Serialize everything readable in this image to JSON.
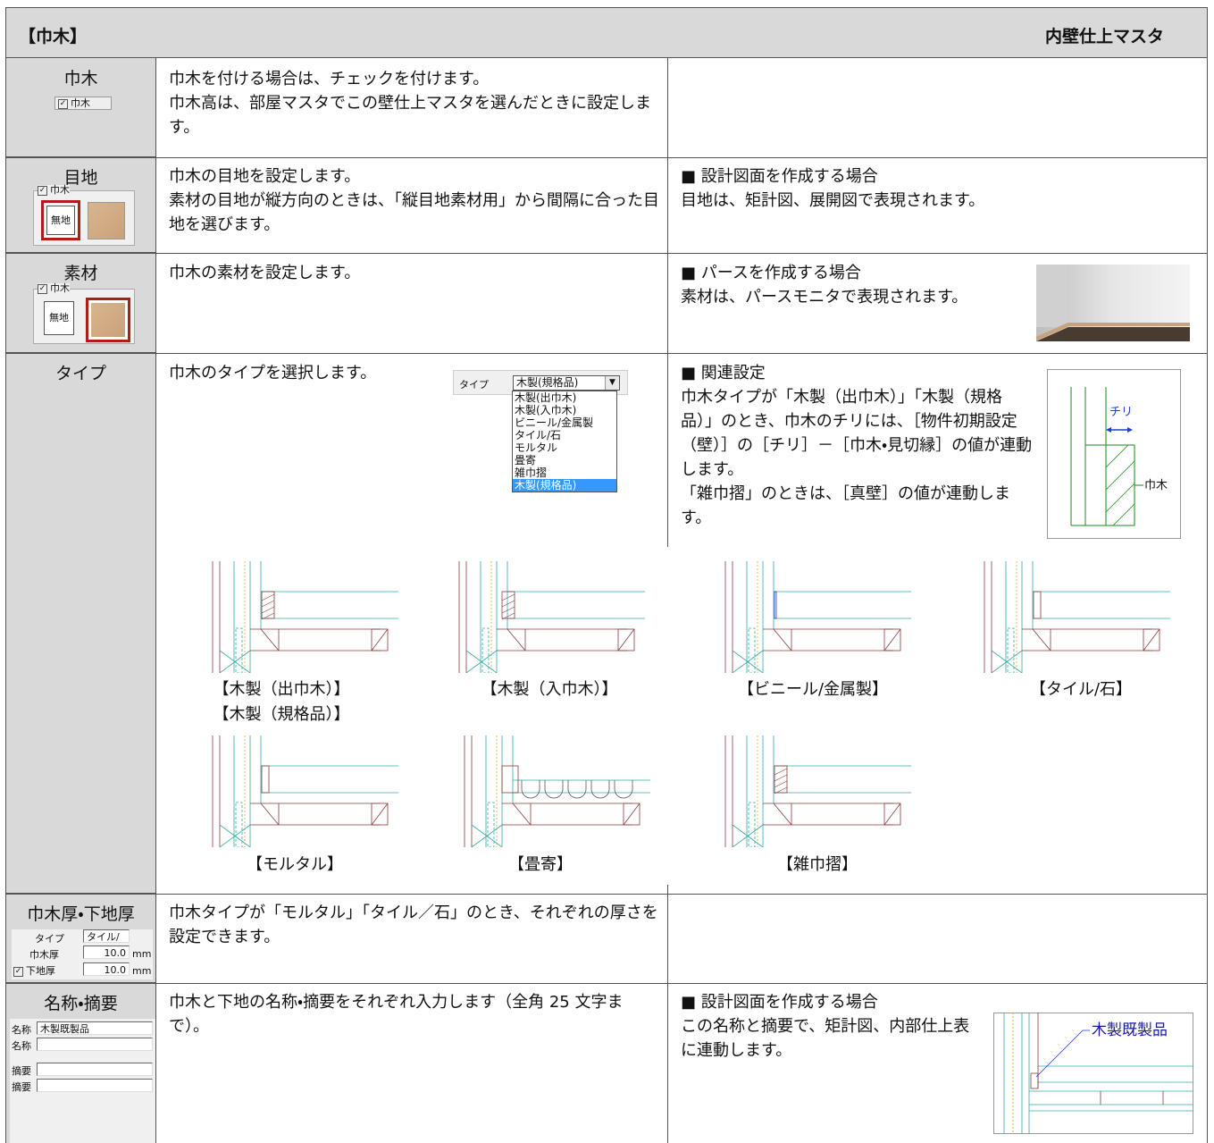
{
  "header": {
    "title": "【巾木】",
    "subtitle": "内壁仕上マスタ"
  },
  "rows": [
    {
      "label": "巾木",
      "widget": {
        "checkbox": "巾木"
      },
      "description": [
        "巾木を付ける場合は、チェックを付けます。",
        "巾木高は、部屋マスタでこの壁仕上マスタを選んだときに設定します。"
      ]
    },
    {
      "label": "目地",
      "widget": {
        "group": "巾木",
        "swatch": "無地"
      },
      "description": [
        "巾木の目地を設定します。",
        "素材の目地が縦方向のときは、「縦目地素材用」から間隔に合った目地を選びます。"
      ],
      "note": [
        "■ 設計図面を作成する場合",
        "目地は、矩計図、展開図で表現されます。"
      ]
    },
    {
      "label": "素材",
      "widget": {
        "group": "巾木",
        "swatch": "無地"
      },
      "description": [
        "巾木の素材を設定します。"
      ],
      "note": [
        "■ パースを作成する場合",
        "素材は、パースモニタで表現されます。"
      ]
    },
    {
      "label": "タイプ",
      "widget": {
        "field": "タイプ",
        "selected": "木製(規格品)",
        "options": [
          "木製(出巾木)",
          "木製(入巾木)",
          "ビニール/金属製",
          "タイル/石",
          "モルタル",
          "畳寄",
          "雑巾摺",
          "木製(規格品)"
        ]
      },
      "description": [
        "巾木のタイプを選択します。"
      ],
      "note": [
        "■ 関連設定",
        "巾木タイプが「木製（出巾木）」「木製（規格品）」のとき、巾木のチリには、［物件初期設定（壁）］の［チリ］－［巾木・見切縁］の値が連動します。",
        "「雑巾摺」のときは、［真壁］の値が連動します。"
      ],
      "diagram": {
        "dimension": "チリ",
        "part": "巾木"
      },
      "drawings": [
        {
          "captions": [
            "【木製（出巾木）】",
            "【木製（規格品）】"
          ]
        },
        {
          "captions": [
            "【木製（入巾木）】"
          ]
        },
        {
          "captions": [
            "【ビニール/金属製】"
          ]
        },
        {
          "captions": [
            "【タイル/石】"
          ]
        },
        {
          "captions": [
            "【モルタル】"
          ]
        },
        {
          "captions": [
            "【畳寄】"
          ]
        },
        {
          "captions": [
            "【雑巾摺】"
          ]
        }
      ]
    },
    {
      "label": "巾木厚・下地厚",
      "widget": {
        "fields": [
          {
            "label": "タイプ",
            "value": "タイル/石"
          },
          {
            "label": "巾木厚",
            "value": "10.0",
            "unit": "mm"
          },
          {
            "label": "下地厚",
            "value": "10.0",
            "unit": "mm"
          }
        ]
      },
      "description": [
        "巾木タイプが「モルタル」「タイル／石」のとき、それぞれの厚さを設定できます。"
      ]
    },
    {
      "label": "名称・摘要",
      "widget": {
        "fields": [
          "名称",
          "名称",
          "摘要",
          "摘要"
        ],
        "value": "木製既製品"
      },
      "description": [
        "巾木と下地の名称・摘要をそれぞれ入力します（全角 25 文字まで）。"
      ],
      "note": [
        "■ 設計図面を作成する場合",
        "この名称と摘要で、矩計図、内部仕上表に連動します。"
      ],
      "diagram": {
        "label": "木製既製品"
      }
    }
  ]
}
